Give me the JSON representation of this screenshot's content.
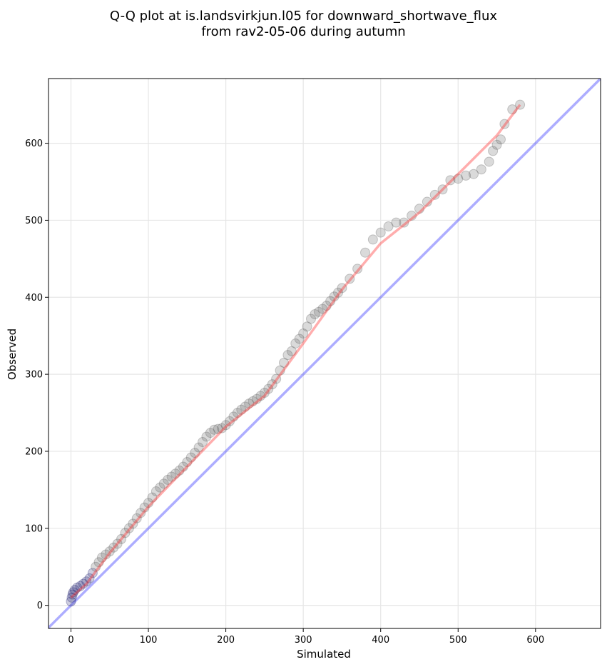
{
  "chart_data": {
    "type": "scatter",
    "title_line1": "Q-Q plot at is.landsvirkjun.l05 for downward_shortwave_flux",
    "title_line2": "from rav2-05-06 during autumn",
    "xlabel": "Simulated",
    "ylabel": "Observed",
    "xlim": [
      -29,
      684
    ],
    "ylim": [
      -30,
      684
    ],
    "x_ticks": [
      0,
      100,
      200,
      300,
      400,
      500,
      600
    ],
    "y_ticks": [
      0,
      100,
      200,
      300,
      400,
      500,
      600
    ],
    "grid": true,
    "colors": {
      "points": "#555555",
      "points_low": "#1a1a6e",
      "fit_line": "#ff3333",
      "identity_line": "#3333ff"
    },
    "quantiles_simulated": [
      0,
      1,
      2,
      3,
      5,
      8,
      12,
      16,
      20,
      24,
      28,
      32,
      36,
      40,
      45,
      50,
      55,
      60,
      65,
      70,
      75,
      80,
      85,
      90,
      95,
      100,
      105,
      110,
      115,
      120,
      125,
      130,
      135,
      140,
      145,
      150,
      155,
      160,
      165,
      170,
      175,
      180,
      185,
      190,
      195,
      200,
      205,
      210,
      215,
      220,
      225,
      230,
      235,
      240,
      245,
      250,
      255,
      260,
      265,
      270,
      275,
      280,
      285,
      290,
      295,
      300,
      305,
      310,
      315,
      320,
      325,
      330,
      335,
      340,
      345,
      350,
      360,
      370,
      380,
      390,
      400,
      410,
      420,
      430,
      440,
      450,
      460,
      470,
      480,
      490,
      500,
      510,
      520,
      530,
      540,
      545,
      550,
      555,
      560,
      570,
      580
    ],
    "quantiles_observed": [
      5,
      10,
      14,
      17,
      20,
      23,
      25,
      28,
      31,
      35,
      42,
      50,
      56,
      62,
      66,
      70,
      75,
      80,
      86,
      94,
      100,
      106,
      113,
      120,
      127,
      133,
      140,
      148,
      153,
      158,
      163,
      167,
      171,
      175,
      180,
      186,
      192,
      198,
      205,
      212,
      219,
      224,
      228,
      229,
      230,
      234,
      239,
      245,
      250,
      254,
      258,
      262,
      265,
      268,
      272,
      276,
      281,
      287,
      294,
      305,
      315,
      325,
      330,
      340,
      346,
      353,
      362,
      372,
      378,
      381,
      385,
      389,
      395,
      401,
      406,
      412,
      424,
      437,
      458,
      475,
      484,
      492,
      497,
      497,
      506,
      515,
      524,
      533,
      540,
      552,
      554,
      558,
      560,
      566,
      576,
      590,
      598,
      605,
      625,
      644,
      650
    ],
    "fit_line": [
      [
        0,
        10
      ],
      [
        20,
        28
      ],
      [
        50,
        68
      ],
      [
        100,
        128
      ],
      [
        150,
        180
      ],
      [
        200,
        232
      ],
      [
        250,
        272
      ],
      [
        300,
        340
      ],
      [
        350,
        410
      ],
      [
        400,
        470
      ],
      [
        450,
        510
      ],
      [
        500,
        560
      ],
      [
        550,
        610
      ],
      [
        580,
        650
      ]
    ],
    "identity_line": [
      [
        -29,
        -29
      ],
      [
        684,
        684
      ]
    ]
  }
}
